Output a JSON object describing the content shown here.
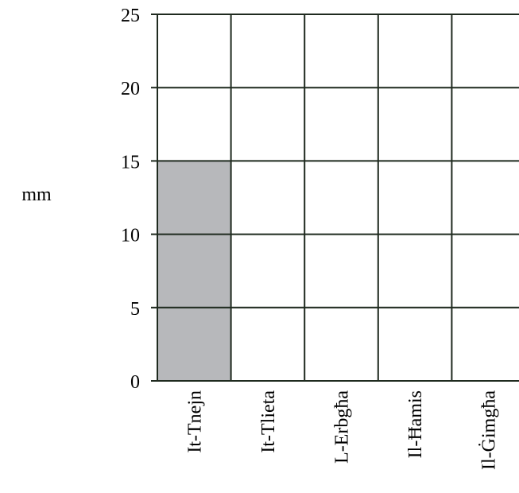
{
  "chart_data": {
    "type": "bar",
    "categories": [
      "It-Tnejn",
      "It-Tlieta",
      "L-Erbgħa",
      "Il-Ħamis",
      "Il-Ġimgħa"
    ],
    "values": [
      15,
      0,
      0,
      0,
      0
    ],
    "ylabel": "mm",
    "xlabel": "",
    "ylim": [
      0,
      25
    ],
    "yticks": [
      0,
      5,
      10,
      15,
      20,
      25
    ],
    "grid": true,
    "bar_color": "#b7b8bb",
    "grid_color": "#1f2a1f"
  }
}
